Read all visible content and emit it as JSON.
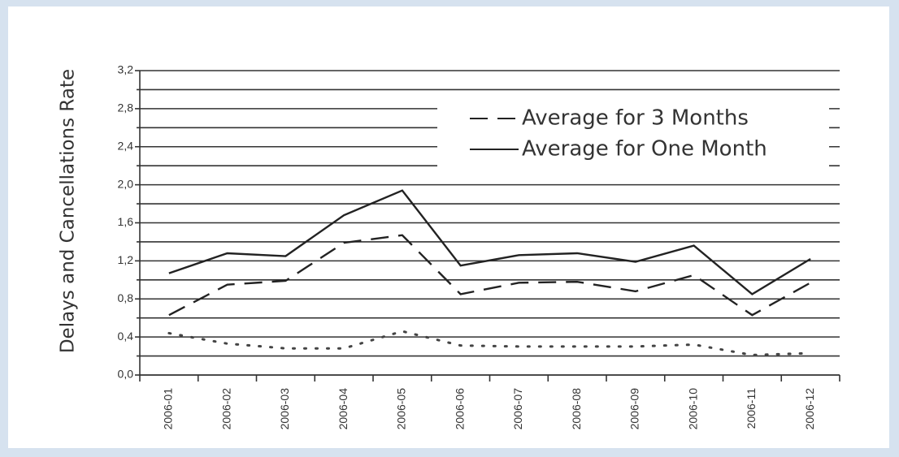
{
  "chart_data": {
    "type": "line",
    "y_label": "Delays and Cancellations Rate",
    "categories": [
      "2006-01",
      "2006-02",
      "2006-03",
      "2006-04",
      "2006-05",
      "2006-06",
      "2006-07",
      "2006-08",
      "2006-09",
      "2006-10",
      "2006-11",
      "2006-12"
    ],
    "series": [
      {
        "name": "Average for 3 Months",
        "color": "#222222",
        "style": "dashed",
        "values": [
          0.63,
          0.95,
          0.99,
          1.39,
          1.47,
          0.85,
          0.97,
          0.98,
          0.88,
          1.05,
          0.63,
          0.97
        ]
      },
      {
        "name": "Average for One Month",
        "color": "#222222",
        "style": "solid",
        "values": [
          1.07,
          1.28,
          1.25,
          1.68,
          1.94,
          1.15,
          1.26,
          1.28,
          1.19,
          1.36,
          0.85,
          1.22
        ]
      },
      {
        "color": "#444444",
        "style": "dotted",
        "values": [
          0.44,
          0.33,
          0.28,
          0.28,
          0.46,
          0.31,
          0.3,
          0.3,
          0.3,
          0.32,
          0.21,
          0.23
        ]
      }
    ],
    "ylim": [
      0,
      3.2
    ],
    "yticks": [
      {
        "value": 0,
        "label": "0,0"
      },
      {
        "value": 0.4,
        "label": "0,4"
      },
      {
        "value": 0.8,
        "label": "0,8"
      },
      {
        "value": 1.2,
        "label": "1,2"
      },
      {
        "value": 1.6,
        "label": "1,6"
      },
      {
        "value": 2.0,
        "label": "2,0"
      },
      {
        "value": 2.4,
        "label": "2,4"
      },
      {
        "value": 2.8,
        "label": "2,8"
      },
      {
        "value": 3.2,
        "label": "3,2"
      }
    ],
    "minor_yticks": [
      0.2,
      0.6,
      1.0,
      1.4,
      1.8,
      2.2,
      2.6,
      3.0
    ],
    "grid": true,
    "legend": "upper right"
  }
}
